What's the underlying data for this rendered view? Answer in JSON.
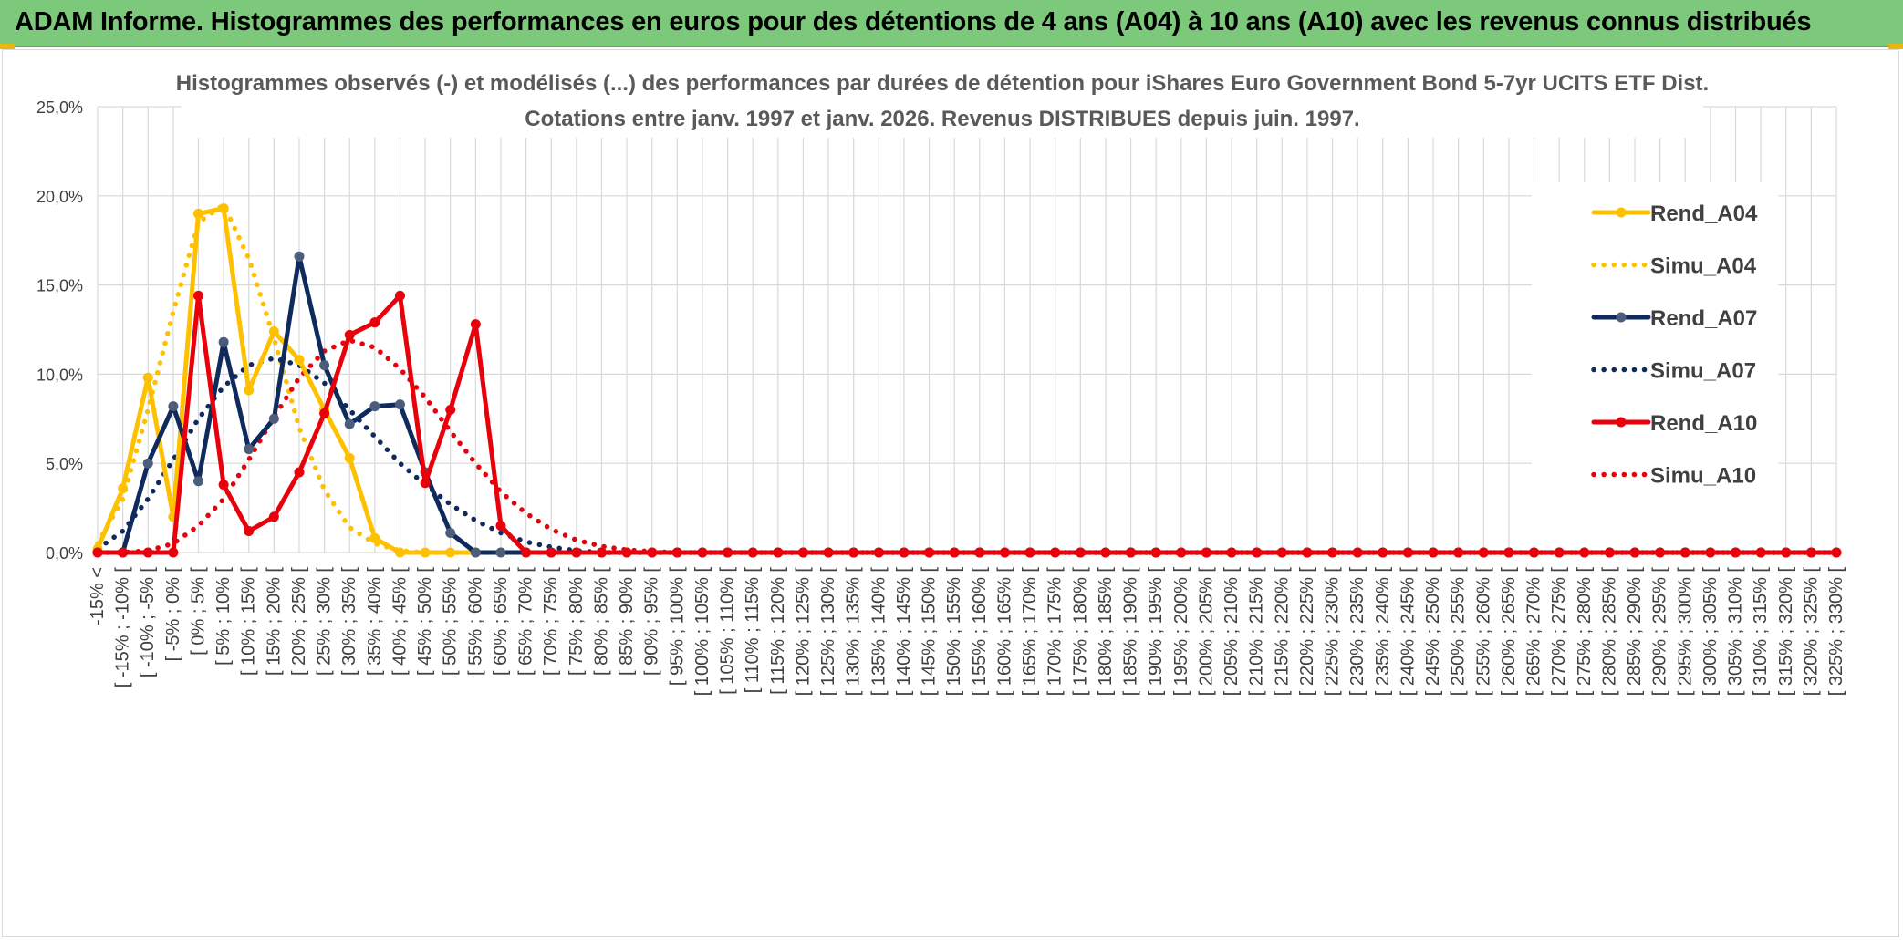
{
  "header": {
    "title": "ADAM Informe. Histogrammes des performances en euros pour des détentions de 4 ans (A04) à 10 ans (A10) avec les revenus connus distribués"
  },
  "chart_data": {
    "type": "line",
    "title": [
      "Histogrammes observés (-) et modélisés (...) des performances par durées de détention pour iShares Euro Government Bond 5-7yr UCITS ETF Dist.",
      "Cotations entre janv. 1997 et janv. 2026. Revenus DISTRIBUES depuis juin. 1997."
    ],
    "xlabel": "",
    "ylabel": "",
    "ylim": [
      0,
      25
    ],
    "y_ticks": [
      "0,0%",
      "5,0%",
      "10,0%",
      "15,0%",
      "20,0%",
      "25,0%"
    ],
    "y_tick_values": [
      0,
      5,
      10,
      15,
      20,
      25
    ],
    "grid": true,
    "legend_position": "right",
    "categories": [
      "-15% <",
      "[ -15% ; -10% [",
      "[ -10% ; -5% [",
      "[ -5% ; 0% [",
      "[ 0% ; 5% [",
      "[ 5% ; 10% [",
      "[ 10% ; 15% [",
      "[ 15% ; 20% [",
      "[ 20% ; 25% [",
      "[ 25% ; 30% [",
      "[ 30% ; 35% [",
      "[ 35% ; 40% [",
      "[ 40% ; 45% [",
      "[ 45% ; 50% [",
      "[ 50% ; 55% [",
      "[ 55% ; 60% [",
      "[ 60% ; 65% [",
      "[ 65% ; 70% [",
      "[ 70% ; 75% [",
      "[ 75% ; 80% [",
      "[ 80% ; 85% [",
      "[ 85% ; 90% [",
      "[ 90% ; 95% [",
      "[ 95% ; 100% [",
      "[ 100% ; 105% [",
      "[ 105% ; 110% [",
      "[ 110% ; 115% [",
      "[ 115% ; 120% [",
      "[ 120% ; 125% [",
      "[ 125% ; 130% [",
      "[ 130% ; 135% [",
      "[ 135% ; 140% [",
      "[ 140% ; 145% [",
      "[ 145% ; 150% [",
      "[ 150% ; 155% [",
      "[ 155% ; 160% [",
      "[ 160% ; 165% [",
      "[ 165% ; 170% [",
      "[ 170% ; 175% [",
      "[ 175% ; 180% [",
      "[ 180% ; 185% [",
      "[ 185% ; 190% [",
      "[ 190% ; 195% [",
      "[ 195% ; 200% [",
      "[ 200% ; 205% [",
      "[ 205% ; 210% [",
      "[ 210% ; 215% [",
      "[ 215% ; 220% [",
      "[ 220% ; 225% [",
      "[ 225% ; 230% [",
      "[ 230% ; 235% [",
      "[ 235% ; 240% [",
      "[ 240% ; 245% [",
      "[ 245% ; 250% [",
      "[ 250% ; 255% [",
      "[ 255% ; 260% [",
      "[ 260% ; 265% [",
      "[ 265% ; 270% [",
      "[ 270% ; 275% [",
      "[ 275% ; 280% [",
      "[ 280% ; 285% [",
      "[ 285% ; 290% [",
      "[ 290% ; 295% [",
      "[ 295% ; 300% [",
      "[ 300% ; 305% [",
      "[ 305% ; 310% [",
      "[ 310% ; 315% [",
      "[ 315% ; 320% [",
      "[ 320% ; 325% [",
      "[ 325% ; 330% ["
    ],
    "series": [
      {
        "name": "Rend_A04",
        "color": "#ffc000",
        "style": "solid",
        "markers": true,
        "values": [
          0.2,
          3.6,
          9.8,
          2.0,
          19.0,
          19.3,
          9.1,
          12.4,
          10.8,
          8.0,
          5.3,
          0.8,
          0,
          0,
          0,
          0,
          0,
          0,
          0,
          0,
          0,
          0,
          0,
          0,
          0,
          0,
          0,
          0,
          0,
          0,
          0,
          0,
          0,
          0,
          0,
          0,
          0,
          0,
          0,
          0,
          0,
          0,
          0,
          0,
          0,
          0,
          0,
          0,
          0,
          0,
          0,
          0,
          0,
          0,
          0,
          0,
          0,
          0,
          0,
          0,
          0,
          0,
          0,
          0,
          0,
          0,
          0,
          0,
          0,
          0
        ]
      },
      {
        "name": "Simu_A04",
        "color": "#ffc000",
        "style": "dotted",
        "markers": false,
        "values": [
          0.5,
          3.0,
          8.0,
          13.5,
          18.5,
          19.5,
          16.5,
          12.0,
          7.0,
          3.5,
          1.4,
          0.5,
          0.1,
          0,
          0,
          0,
          0,
          0,
          0,
          0,
          0,
          0,
          0,
          0,
          0,
          0,
          0,
          0,
          0,
          0,
          0,
          0,
          0,
          0,
          0,
          0,
          0,
          0,
          0,
          0,
          0,
          0,
          0,
          0,
          0,
          0,
          0,
          0,
          0,
          0,
          0,
          0,
          0,
          0,
          0,
          0,
          0,
          0,
          0,
          0,
          0,
          0,
          0,
          0,
          0,
          0,
          0,
          0,
          0,
          0
        ]
      },
      {
        "name": "Rend_A07",
        "color": "#0f2a5c",
        "style": "solid",
        "markers": true,
        "values": [
          0,
          0,
          5.0,
          8.2,
          4.0,
          11.8,
          5.8,
          7.5,
          16.6,
          10.5,
          7.2,
          8.2,
          8.3,
          4.5,
          1.1,
          0,
          0,
          0,
          0,
          0,
          0,
          0,
          0,
          0,
          0,
          0,
          0,
          0,
          0,
          0,
          0,
          0,
          0,
          0,
          0,
          0,
          0,
          0,
          0,
          0,
          0,
          0,
          0,
          0,
          0,
          0,
          0,
          0,
          0,
          0,
          0,
          0,
          0,
          0,
          0,
          0,
          0,
          0,
          0,
          0,
          0,
          0,
          0,
          0,
          0,
          0,
          0,
          0,
          0,
          0
        ]
      },
      {
        "name": "Simu_A07",
        "color": "#0f2a5c",
        "style": "dotted",
        "markers": false,
        "values": [
          0.2,
          1.2,
          3.0,
          5.2,
          7.5,
          9.3,
          10.5,
          10.9,
          10.5,
          9.5,
          8.0,
          6.5,
          5.0,
          3.8,
          2.7,
          1.8,
          1.1,
          0.6,
          0.3,
          0.1,
          0,
          0,
          0,
          0,
          0,
          0,
          0,
          0,
          0,
          0,
          0,
          0,
          0,
          0,
          0,
          0,
          0,
          0,
          0,
          0,
          0,
          0,
          0,
          0,
          0,
          0,
          0,
          0,
          0,
          0,
          0,
          0,
          0,
          0,
          0,
          0,
          0,
          0,
          0,
          0,
          0,
          0,
          0,
          0,
          0,
          0,
          0,
          0,
          0,
          0
        ]
      },
      {
        "name": "Rend_A10",
        "color": "#e8000b",
        "style": "solid",
        "markers": true,
        "values": [
          0,
          0,
          0,
          0,
          14.4,
          3.8,
          1.2,
          2.0,
          4.5,
          7.8,
          12.2,
          12.9,
          14.4,
          3.9,
          8.0,
          12.8,
          1.5,
          0,
          0,
          0,
          0,
          0,
          0,
          0,
          0,
          0,
          0,
          0,
          0,
          0,
          0,
          0,
          0,
          0,
          0,
          0,
          0,
          0,
          0,
          0,
          0,
          0,
          0,
          0,
          0,
          0,
          0,
          0,
          0,
          0,
          0,
          0,
          0,
          0,
          0,
          0,
          0,
          0,
          0,
          0,
          0,
          0,
          0,
          0,
          0,
          0,
          0,
          0,
          0,
          0
        ]
      },
      {
        "name": "Simu_A10",
        "color": "#e8000b",
        "style": "dotted",
        "markers": false,
        "values": [
          0,
          0,
          0.1,
          0.5,
          1.5,
          3.0,
          5.2,
          7.6,
          9.8,
          11.3,
          11.9,
          11.5,
          10.3,
          8.7,
          6.8,
          5.0,
          3.4,
          2.2,
          1.3,
          0.7,
          0.35,
          0.15,
          0.05,
          0,
          0,
          0,
          0,
          0,
          0,
          0,
          0,
          0,
          0,
          0,
          0,
          0,
          0,
          0,
          0,
          0,
          0,
          0,
          0,
          0,
          0,
          0,
          0,
          0,
          0,
          0,
          0,
          0,
          0,
          0,
          0,
          0,
          0,
          0,
          0,
          0,
          0,
          0,
          0,
          0,
          0,
          0,
          0,
          0,
          0,
          0
        ]
      }
    ]
  }
}
